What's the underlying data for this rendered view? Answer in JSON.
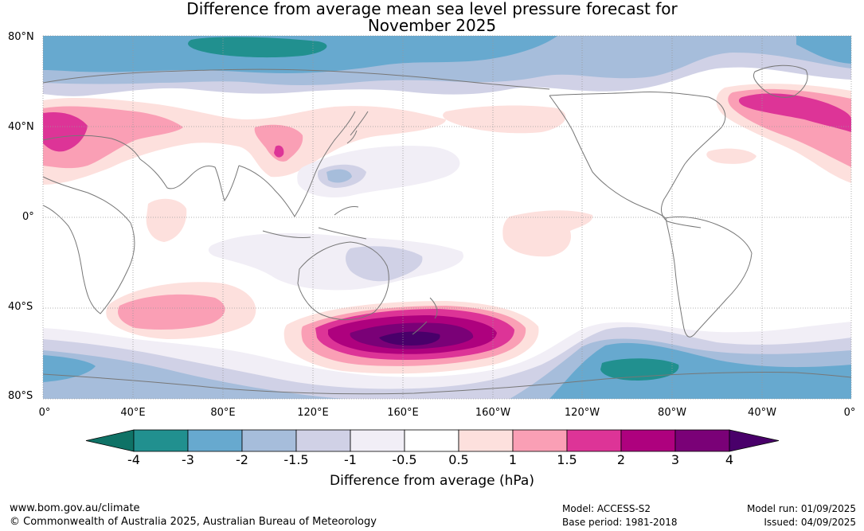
{
  "title_line1": "Difference from average mean sea level pressure forecast for",
  "title_line2": "November 2025",
  "lat_labels": [
    "80°N",
    "40°N",
    "0°",
    "40°S",
    "80°S"
  ],
  "lon_labels": [
    "0°",
    "40°E",
    "80°E",
    "120°E",
    "160°E",
    "160°W",
    "120°W",
    "80°W",
    "40°W",
    "0°"
  ],
  "colorbar": {
    "ticks": [
      "-4",
      "-3",
      "-2",
      "-1.5",
      "-1",
      "-0.5",
      "0.5",
      "1",
      "1.5",
      "2",
      "3",
      "4"
    ],
    "colors": [
      "#0f7266",
      "#21908f",
      "#67a9cf",
      "#a6bddb",
      "#d0d1e6",
      "#f1eef6",
      "#ffffff",
      "#fde0dd",
      "#fa9fb5",
      "#dd3497",
      "#ae017e",
      "#7a0177",
      "#49006a"
    ],
    "label": "Difference from average (hPa)"
  },
  "footer": {
    "url": "www.bom.gov.au/climate",
    "copyright": "© Commonwealth of Australia 2025, Australian Bureau of Meteorology",
    "model": "Model: ACCESS-S2",
    "base_period": "Base period: 1981-2018",
    "model_run": "Model run: 01/09/2025",
    "issued": "Issued: 04/09/2025"
  }
}
